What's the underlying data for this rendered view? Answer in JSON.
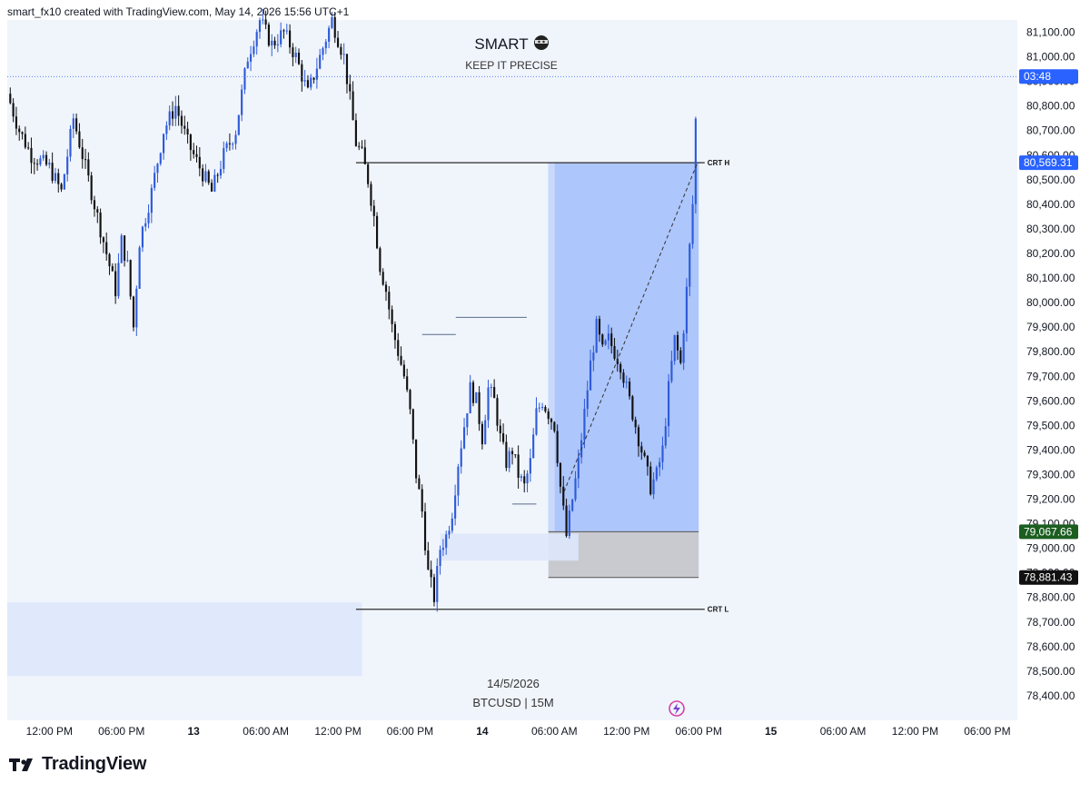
{
  "header": {
    "text": "smart_fx10 created with TradingView.com, May 14, 2026 15:56 UTC+1"
  },
  "watermark": {
    "title": "SMART",
    "subtitle": "KEEP IT PRECISE",
    "date": "14/5/2026",
    "symbol": "BTCUSD | 15M"
  },
  "footer": {
    "brand": "TradingView"
  },
  "colors": {
    "background": "#f0f5fc",
    "bull": "#2f5bd8",
    "bear": "#111111",
    "target_zone": "#a9c3fb",
    "stop_zone": "#c5c7cc",
    "highlight_zone": "#dde8fb",
    "price_tag_blue": "#2962ff",
    "price_tag_green": "#1b5e20",
    "price_tag_black": "#111111"
  },
  "chart_data": {
    "type": "candlestick",
    "symbol": "BTCUSD",
    "timeframe": "15M",
    "ylim": [
      78300,
      81150
    ],
    "y_ticks": [
      "81,100.00",
      "81,000.00",
      "80,900.00",
      "80,800.00",
      "80,700.00",
      "80,600.00",
      "80,500.00",
      "80,400.00",
      "80,300.00",
      "80,200.00",
      "80,100.00",
      "80,000.00",
      "79,900.00",
      "79,800.00",
      "79,700.00",
      "79,600.00",
      "79,500.00",
      "79,400.00",
      "79,300.00",
      "79,200.00",
      "79,100.00",
      "79,000.00",
      "78,900.00",
      "78,800.00",
      "78,700.00",
      "78,600.00",
      "78,500.00",
      "78,400.00"
    ],
    "y_tick_values": [
      81100,
      81000,
      80900,
      80800,
      80700,
      80600,
      80500,
      80400,
      80300,
      80200,
      80100,
      80000,
      79900,
      79800,
      79700,
      79600,
      79500,
      79400,
      79300,
      79200,
      79100,
      79000,
      78900,
      78800,
      78700,
      78600,
      78500,
      78400
    ],
    "x_range_hours": [
      -27.5,
      56.5
    ],
    "x_ticks": [
      {
        "label": "12:00 PM",
        "hour": -24,
        "bold": false
      },
      {
        "label": "06:00 PM",
        "hour": -18,
        "bold": false
      },
      {
        "label": "13",
        "hour": -12,
        "bold": true
      },
      {
        "label": "06:00 AM",
        "hour": -6,
        "bold": false
      },
      {
        "label": "12:00 PM",
        "hour": 0,
        "bold": false
      },
      {
        "label": "06:00 PM",
        "hour": 6,
        "bold": false
      },
      {
        "label": "14",
        "hour": 12,
        "bold": true
      },
      {
        "label": "06:00 AM",
        "hour": 18,
        "bold": false
      },
      {
        "label": "12:00 PM",
        "hour": 24,
        "bold": false
      },
      {
        "label": "06:00 PM",
        "hour": 30,
        "bold": false
      },
      {
        "label": "15",
        "hour": 36,
        "bold": true
      },
      {
        "label": "06:00 AM",
        "hour": 42,
        "bold": false
      },
      {
        "label": "12:00 PM",
        "hour": 48,
        "bold": false
      },
      {
        "label": "06:00 PM",
        "hour": 54,
        "bold": false
      }
    ],
    "candle_path": [
      [
        -27.5,
        80850
      ],
      [
        -26.5,
        80700
      ],
      [
        -25.5,
        80600
      ],
      [
        -24,
        80550
      ],
      [
        -23,
        80450
      ],
      [
        -22,
        80750
      ],
      [
        -21,
        80550
      ],
      [
        -20,
        80350
      ],
      [
        -19,
        80150
      ],
      [
        -18.5,
        80050
      ],
      [
        -18,
        80250
      ],
      [
        -17.5,
        80150
      ],
      [
        -17,
        79900
      ],
      [
        -16.5,
        80250
      ],
      [
        -15.5,
        80450
      ],
      [
        -14.5,
        80700
      ],
      [
        -13.5,
        80800
      ],
      [
        -12.5,
        80650
      ],
      [
        -11.5,
        80550
      ],
      [
        -10.5,
        80450
      ],
      [
        -9.5,
        80600
      ],
      [
        -8.5,
        80700
      ],
      [
        -7.5,
        81000
      ],
      [
        -6.5,
        81150
      ],
      [
        -5.5,
        81050
      ],
      [
        -4.5,
        81100
      ],
      [
        -3.5,
        81000
      ],
      [
        -2.5,
        80850
      ],
      [
        -1.5,
        81000
      ],
      [
        -0.5,
        81150
      ],
      [
        0.5,
        81000
      ],
      [
        1.5,
        80650
      ],
      [
        2,
        80600
      ],
      [
        2.5,
        80500
      ],
      [
        3,
        80350
      ],
      [
        3.5,
        80150
      ],
      [
        4,
        80050
      ],
      [
        4.5,
        79900
      ],
      [
        5,
        79800
      ],
      [
        5.5,
        79700
      ],
      [
        6,
        79550
      ],
      [
        6.5,
        79300
      ],
      [
        7,
        79150
      ],
      [
        7.5,
        78900
      ],
      [
        8,
        78800
      ],
      [
        8.5,
        79000
      ],
      [
        9,
        79050
      ],
      [
        9.5,
        79150
      ],
      [
        10,
        79350
      ],
      [
        10.5,
        79500
      ],
      [
        11,
        79650
      ],
      [
        11.5,
        79600
      ],
      [
        12,
        79450
      ],
      [
        12.5,
        79650
      ],
      [
        13,
        79600
      ],
      [
        13.5,
        79450
      ],
      [
        14,
        79350
      ],
      [
        14.5,
        79400
      ],
      [
        15,
        79300
      ],
      [
        15.5,
        79250
      ],
      [
        16,
        79350
      ],
      [
        16.5,
        79550
      ],
      [
        17,
        79600
      ],
      [
        17.5,
        79550
      ],
      [
        18,
        79500
      ],
      [
        18.5,
        79250
      ],
      [
        19,
        79050
      ],
      [
        19.5,
        79200
      ],
      [
        20,
        79350
      ],
      [
        20.5,
        79550
      ],
      [
        21,
        79750
      ],
      [
        21.5,
        79900
      ],
      [
        22,
        79800
      ],
      [
        22.5,
        79850
      ],
      [
        23,
        79800
      ],
      [
        23.5,
        79750
      ],
      [
        24,
        79650
      ],
      [
        24.5,
        79550
      ],
      [
        25,
        79450
      ],
      [
        25.5,
        79350
      ],
      [
        26,
        79250
      ],
      [
        26.5,
        79300
      ],
      [
        27,
        79400
      ],
      [
        27.5,
        79650
      ],
      [
        28,
        79850
      ],
      [
        28.5,
        79750
      ],
      [
        29,
        80050
      ],
      [
        29.5,
        80400
      ],
      [
        29.9,
        80950
      ]
    ],
    "price_labels": [
      {
        "text": "03:48",
        "price": 80920,
        "color": "#2962ff"
      },
      {
        "text": "80,569.31",
        "price": 80569.31,
        "color": "#2962ff"
      },
      {
        "text": "79,067.66",
        "price": 79067.66,
        "color": "#1b5e20"
      },
      {
        "text": "78,881.43",
        "price": 78881.43,
        "color": "#111111"
      }
    ],
    "levels": [
      {
        "label": "CRT H",
        "price": 80569.31,
        "x_from": 1.5,
        "x_to": 30.5
      },
      {
        "label": "CRT L",
        "price": 78752,
        "x_from": 1.5,
        "x_to": 30.5
      }
    ],
    "minor_lines": [
      {
        "price": 79870,
        "x_from": 7,
        "x_to": 9.8
      },
      {
        "price": 79940,
        "x_from": 9.8,
        "x_to": 15.7
      },
      {
        "price": 79180,
        "x_from": 14.5,
        "x_to": 16.5
      }
    ],
    "zones": [
      {
        "kind": "target",
        "x_from": 17.5,
        "x_to": 30,
        "top": 80569.31,
        "bottom": 79067.66
      },
      {
        "kind": "stop",
        "x_from": 17.5,
        "x_to": 30,
        "top": 79067.66,
        "bottom": 78881.43
      },
      {
        "kind": "highlight",
        "x_from": -27.5,
        "x_to": 2,
        "top": 78780,
        "bottom": 78480
      },
      {
        "kind": "highlight",
        "x_from": 8.5,
        "x_to": 20,
        "top": 79060,
        "bottom": 78950
      }
    ],
    "projection": {
      "from_hour": 18.8,
      "from_price": 79230,
      "to_hour": 29.9,
      "to_price": 80569.31
    }
  }
}
